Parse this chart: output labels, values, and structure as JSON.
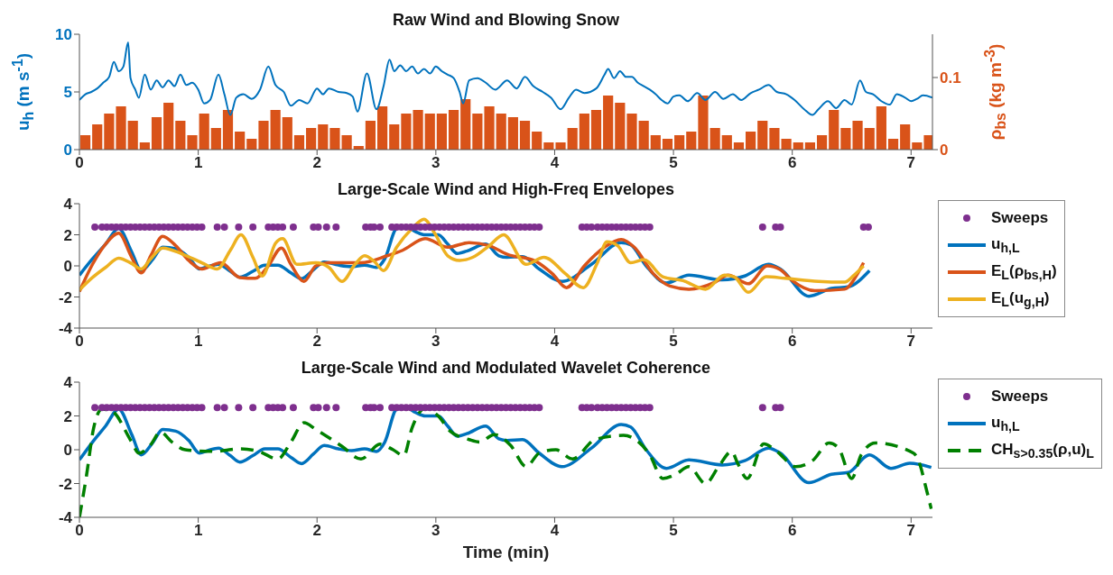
{
  "chart_data": [
    {
      "type": "line",
      "title": "Raw Wind and Blowing Snow",
      "ylabel": "u$_{h}$ (m s$^{-1}$)",
      "y2label": "ρ$_{bs}$ (kg m$^{-3}$)",
      "xlim": [
        0,
        7.18
      ],
      "xticks": [
        0,
        1,
        2,
        3,
        4,
        5,
        6,
        7
      ],
      "ylim": [
        0,
        10
      ],
      "yticks": [
        0,
        5,
        10
      ],
      "y2lim": [
        0,
        0.16
      ],
      "y2ticks": [
        0,
        0.1
      ],
      "series": [
        {
          "type": "bar",
          "axis": "y2",
          "color": "#d95319",
          "x": [
            0.05,
            0.15,
            0.25,
            0.35,
            0.45,
            0.55,
            0.65,
            0.75,
            0.85,
            0.95,
            1.05,
            1.15,
            1.25,
            1.35,
            1.45,
            1.55,
            1.65,
            1.75,
            1.85,
            1.95,
            2.05,
            2.15,
            2.25,
            2.35,
            2.45,
            2.55,
            2.65,
            2.75,
            2.85,
            2.95,
            3.05,
            3.15,
            3.25,
            3.35,
            3.45,
            3.55,
            3.65,
            3.75,
            3.85,
            3.95,
            4.05,
            4.15,
            4.25,
            4.35,
            4.45,
            4.55,
            4.65,
            4.75,
            4.85,
            4.95,
            5.05,
            5.15,
            5.25,
            5.35,
            5.45,
            5.55,
            5.65,
            5.75,
            5.85,
            5.95,
            6.05,
            6.15,
            6.25,
            6.35,
            6.45,
            6.55,
            6.65,
            6.75,
            6.85,
            6.95,
            7.05,
            7.15
          ],
          "values": [
            0.02,
            0.035,
            0.05,
            0.06,
            0.04,
            0.01,
            0.045,
            0.065,
            0.04,
            0.02,
            0.05,
            0.03,
            0.055,
            0.025,
            0.015,
            0.04,
            0.055,
            0.045,
            0.02,
            0.03,
            0.035,
            0.03,
            0.02,
            0.005,
            0.04,
            0.06,
            0.035,
            0.05,
            0.055,
            0.05,
            0.05,
            0.055,
            0.07,
            0.05,
            0.06,
            0.05,
            0.045,
            0.04,
            0.025,
            0.01,
            0.01,
            0.03,
            0.05,
            0.055,
            0.075,
            0.065,
            0.05,
            0.04,
            0.02,
            0.015,
            0.02,
            0.025,
            0.075,
            0.03,
            0.02,
            0.01,
            0.025,
            0.04,
            0.03,
            0.015,
            0.01,
            0.01,
            0.02,
            0.055,
            0.03,
            0.04,
            0.03,
            0.06,
            0.015,
            0.035,
            0.01,
            0.02
          ]
        },
        {
          "axis": "y",
          "color": "#0072bd",
          "x": [
            0,
            0.05,
            0.1,
            0.15,
            0.2,
            0.25,
            0.29,
            0.33,
            0.37,
            0.41,
            0.43,
            0.47,
            0.5,
            0.55,
            0.6,
            0.65,
            0.7,
            0.75,
            0.8,
            0.85,
            0.9,
            0.95,
            1.0,
            1.05,
            1.1,
            1.17,
            1.22,
            1.27,
            1.32,
            1.38,
            1.45,
            1.52,
            1.59,
            1.65,
            1.72,
            1.78,
            1.85,
            1.92,
            2.0,
            2.05,
            2.1,
            2.18,
            2.25,
            2.3,
            2.34,
            2.42,
            2.5,
            2.56,
            2.61,
            2.65,
            2.7,
            2.75,
            2.8,
            2.85,
            2.9,
            2.95,
            3.0,
            3.05,
            3.1,
            3.15,
            3.2,
            3.23,
            3.28,
            3.35,
            3.42,
            3.5,
            3.6,
            3.68,
            3.75,
            3.82,
            3.9,
            3.97,
            4.05,
            4.12,
            4.18,
            4.25,
            4.35,
            4.42,
            4.45,
            4.5,
            4.55,
            4.6,
            4.65,
            4.7,
            4.75,
            4.8,
            4.85,
            4.9,
            4.95,
            5.0,
            5.05,
            5.12,
            5.2,
            5.27,
            5.35,
            5.42,
            5.5,
            5.57,
            5.65,
            5.72,
            5.8,
            5.87,
            5.95,
            6.02,
            6.1,
            6.17,
            6.22,
            6.3,
            6.37,
            6.44,
            6.5,
            6.57,
            6.62,
            6.68,
            6.75,
            6.82,
            6.88,
            6.95,
            7.0,
            7.05,
            7.1,
            7.18
          ],
          "values": [
            4.3,
            4.8,
            5.0,
            5.3,
            5.8,
            6.3,
            7.6,
            6.8,
            7.2,
            9.3,
            6.2,
            5.2,
            4.5,
            6.5,
            5.2,
            6.0,
            5.4,
            6.0,
            5.5,
            6.5,
            5.6,
            5.8,
            5.2,
            4.0,
            4.3,
            6.5,
            4.8,
            3.0,
            4.5,
            4.8,
            4.4,
            5.2,
            7.2,
            5.6,
            5.0,
            3.8,
            4.3,
            4.0,
            5.3,
            4.8,
            5.3,
            5.0,
            4.9,
            4.6,
            3.3,
            6.6,
            3.5,
            5.5,
            7.8,
            6.8,
            7.3,
            6.8,
            7.2,
            6.6,
            7.0,
            6.6,
            7.2,
            6.8,
            6.5,
            6.2,
            5.0,
            4.0,
            6.0,
            6.2,
            5.8,
            5.2,
            6.0,
            5.3,
            6.3,
            5.5,
            5.0,
            4.5,
            3.5,
            4.5,
            5.2,
            4.9,
            5.3,
            6.5,
            7.0,
            6.2,
            6.8,
            6.3,
            6.3,
            5.8,
            5.5,
            5.2,
            4.8,
            4.3,
            4.0,
            4.6,
            4.7,
            4.2,
            4.9,
            4.3,
            5.0,
            4.4,
            4.8,
            4.3,
            4.9,
            5.2,
            5.6,
            5.0,
            4.8,
            4.3,
            3.5,
            3.0,
            3.5,
            4.2,
            3.6,
            4.3,
            3.9,
            6.0,
            5.0,
            4.8,
            4.2,
            3.9,
            4.8,
            4.5,
            4.2,
            4.4,
            4.7,
            4.5
          ]
        }
      ]
    },
    {
      "type": "line",
      "title": "Large-Scale Wind and High-Freq Envelopes",
      "xlim": [
        0,
        7.18
      ],
      "xticks": [
        0,
        1,
        2,
        3,
        4,
        5,
        6,
        7
      ],
      "ylim": [
        -4,
        4
      ],
      "yticks": [
        -4,
        -2,
        0,
        2,
        4
      ],
      "legend": "right",
      "series": [
        {
          "type": "scatter",
          "name": "Sweeps",
          "color": "#7e2f8e",
          "marker": "circle",
          "x": [
            0.13,
            0.19,
            0.23,
            0.27,
            0.31,
            0.35,
            0.39,
            0.43,
            0.47,
            0.51,
            0.55,
            0.59,
            0.63,
            0.67,
            0.71,
            0.75,
            0.79,
            0.83,
            0.87,
            0.91,
            0.95,
            0.99,
            1.03,
            1.16,
            1.22,
            1.34,
            1.46,
            1.59,
            1.63,
            1.67,
            1.71,
            1.8,
            1.97,
            2.01,
            2.08,
            2.16,
            2.41,
            2.45,
            2.48,
            2.53,
            2.63,
            2.67,
            2.71,
            2.75,
            2.79,
            2.83,
            2.87,
            2.91,
            2.95,
            2.99,
            3.03,
            3.07,
            3.11,
            3.15,
            3.19,
            3.23,
            3.27,
            3.31,
            3.35,
            3.39,
            3.43,
            3.47,
            3.51,
            3.55,
            3.59,
            3.63,
            3.67,
            3.71,
            3.75,
            3.79,
            3.83,
            3.87,
            4.23,
            4.27,
            4.31,
            4.36,
            4.4,
            4.44,
            4.48,
            4.52,
            4.56,
            4.6,
            4.64,
            4.68,
            4.72,
            4.76,
            4.8,
            5.75,
            5.86,
            5.9,
            6.6,
            6.64
          ],
          "values": [
            2.5,
            2.5,
            2.5,
            2.5,
            2.5,
            2.5,
            2.5,
            2.5,
            2.5,
            2.5,
            2.5,
            2.5,
            2.5,
            2.5,
            2.5,
            2.5,
            2.5,
            2.5,
            2.5,
            2.5,
            2.5,
            2.5,
            2.5,
            2.5,
            2.5,
            2.5,
            2.5,
            2.5,
            2.5,
            2.5,
            2.5,
            2.5,
            2.5,
            2.5,
            2.5,
            2.5,
            2.5,
            2.5,
            2.5,
            2.5,
            2.5,
            2.5,
            2.5,
            2.5,
            2.5,
            2.5,
            2.5,
            2.5,
            2.5,
            2.5,
            2.5,
            2.5,
            2.5,
            2.5,
            2.5,
            2.5,
            2.5,
            2.5,
            2.5,
            2.5,
            2.5,
            2.5,
            2.5,
            2.5,
            2.5,
            2.5,
            2.5,
            2.5,
            2.5,
            2.5,
            2.5,
            2.5,
            2.5,
            2.5,
            2.5,
            2.5,
            2.5,
            2.5,
            2.5,
            2.5,
            2.5,
            2.5,
            2.5,
            2.5,
            2.5,
            2.5,
            2.5,
            2.5,
            2.5,
            2.5,
            2.5,
            2.5
          ]
        },
        {
          "name": "u$_{h,L}$",
          "color": "#0072bd",
          "line_style": "solid",
          "x": [
            0,
            0.11,
            0.22,
            0.33,
            0.44,
            0.52,
            0.62,
            0.7,
            0.81,
            0.92,
            1.01,
            1.08,
            1.17,
            1.27,
            1.35,
            1.46,
            1.56,
            1.67,
            1.78,
            1.87,
            1.97,
            2.06,
            2.18,
            2.29,
            2.4,
            2.5,
            2.57,
            2.67,
            2.75,
            2.83,
            2.91,
            3.02,
            3.1,
            3.18,
            3.26,
            3.42,
            3.53,
            3.6,
            3.73,
            3.87,
            4.06,
            4.31,
            4.56,
            4.64,
            4.77,
            4.94,
            5.13,
            5.41,
            5.6,
            5.8,
            5.9,
            6.14,
            6.33,
            6.47,
            6.65
          ],
          "values": [
            -0.6,
            0.45,
            1.4,
            2.4,
            0.9,
            -0.3,
            0.45,
            1.2,
            1.1,
            0.55,
            -0.2,
            -0.05,
            0.1,
            -0.35,
            -0.73,
            -0.35,
            0.05,
            0.05,
            -0.45,
            -0.82,
            -0.25,
            0.25,
            0.05,
            -0.05,
            0.05,
            -0.1,
            0.45,
            2.4,
            2.5,
            2.2,
            2.0,
            2.0,
            1.4,
            0.8,
            0.95,
            1.4,
            0.65,
            0.55,
            0.6,
            -0.2,
            -1.0,
            0.1,
            1.5,
            1.35,
            0,
            -1.1,
            -0.6,
            -0.9,
            -0.65,
            0.1,
            -0.2,
            -1.95,
            -1.45,
            -1.35,
            -0.3
          ]
        },
        {
          "name": "E$_{L}$(ρ$_{bs,H}$)",
          "color": "#d95319",
          "line_style": "solid",
          "x": [
            0,
            0.11,
            0.22,
            0.33,
            0.44,
            0.52,
            0.6,
            0.7,
            0.81,
            0.92,
            1.03,
            1.19,
            1.35,
            1.48,
            1.59,
            1.7,
            1.78,
            1.89,
            1.99,
            2.1,
            2.37,
            2.59,
            2.72,
            2.91,
            3.1,
            3.28,
            3.45,
            3.6,
            3.84,
            3.98,
            4.1,
            4.25,
            4.42,
            4.56,
            4.67,
            4.83,
            4.97,
            5.13,
            5.35,
            5.46,
            5.63,
            5.79,
            5.9,
            6.0,
            6.19,
            6.44,
            6.55,
            6.6
          ],
          "values": [
            -1.65,
            0.1,
            1.4,
            2.1,
            0.55,
            -0.45,
            0.65,
            1.9,
            1.3,
            0.35,
            -0.2,
            0.2,
            -0.75,
            -0.8,
            0,
            1.15,
            0.1,
            -1.0,
            0,
            0.2,
            0.2,
            0.65,
            1.0,
            1.75,
            1.2,
            1.5,
            1.3,
            0.75,
            0.3,
            -0.5,
            -1.4,
            0,
            1.2,
            1.7,
            1.2,
            -0.5,
            -1.3,
            -1.5,
            -1.05,
            -0.6,
            -1.15,
            0,
            -0.25,
            -0.95,
            -1.6,
            -1.5,
            -0.5,
            0.2
          ]
        },
        {
          "name": "E$_{L}$(u$_{g,H}$)",
          "color": "#edb120",
          "line_style": "solid",
          "x": [
            0,
            0.11,
            0.22,
            0.33,
            0.44,
            0.52,
            0.6,
            0.7,
            0.87,
            1.03,
            1.16,
            1.27,
            1.36,
            1.46,
            1.54,
            1.65,
            1.71,
            1.83,
            1.99,
            2.1,
            2.21,
            2.32,
            2.4,
            2.48,
            2.56,
            2.67,
            2.8,
            2.9,
            2.99,
            3.1,
            3.2,
            3.31,
            3.45,
            3.57,
            3.76,
            3.91,
            4.09,
            4.24,
            4.36,
            4.44,
            4.53,
            4.64,
            4.75,
            4.91,
            5.08,
            5.27,
            5.43,
            5.51,
            5.63,
            5.78,
            5.94,
            6.22,
            6.44,
            6.52,
            6.6
          ],
          "values": [
            -1.55,
            -0.75,
            -0.1,
            0.5,
            0.15,
            -0.2,
            0.45,
            1.15,
            0.75,
            0.2,
            -0.2,
            1.0,
            2.0,
            0.55,
            -0.65,
            1.45,
            1.75,
            0.1,
            0.2,
            -0.1,
            -1.0,
            0.1,
            0.65,
            0.3,
            -0.3,
            1.2,
            2.4,
            3.0,
            2.1,
            0.65,
            0.35,
            0.55,
            1.3,
            2.0,
            0.1,
            0.55,
            -0.5,
            -1.4,
            0.2,
            1.55,
            1.3,
            0.2,
            0.4,
            -0.7,
            -0.95,
            -1.5,
            -0.6,
            -0.7,
            -1.7,
            -0.7,
            -0.8,
            -1.0,
            -1.05,
            -0.6,
            0
          ]
        }
      ]
    },
    {
      "type": "line",
      "title": "Large-Scale Wind and Modulated Wavelet Coherence",
      "xlabel": "Time (min)",
      "xlim": [
        0,
        7.18
      ],
      "xticks": [
        0,
        1,
        2,
        3,
        4,
        5,
        6,
        7
      ],
      "ylim": [
        -4,
        4
      ],
      "yticks": [
        -4,
        -2,
        0,
        2,
        4
      ],
      "legend": "right",
      "series": [
        {
          "type": "scatter",
          "name": "Sweeps",
          "color": "#7e2f8e",
          "marker": "circle",
          "x": [
            0.13,
            0.19,
            0.23,
            0.27,
            0.31,
            0.35,
            0.39,
            0.43,
            0.47,
            0.51,
            0.55,
            0.59,
            0.63,
            0.67,
            0.71,
            0.75,
            0.79,
            0.83,
            0.87,
            0.91,
            0.95,
            0.99,
            1.03,
            1.16,
            1.22,
            1.34,
            1.46,
            1.59,
            1.63,
            1.67,
            1.71,
            1.8,
            1.97,
            2.01,
            2.08,
            2.16,
            2.41,
            2.45,
            2.48,
            2.53,
            2.63,
            2.67,
            2.71,
            2.75,
            2.79,
            2.83,
            2.87,
            2.91,
            2.95,
            2.99,
            3.03,
            3.07,
            3.11,
            3.15,
            3.19,
            3.23,
            3.27,
            3.31,
            3.35,
            3.39,
            3.43,
            3.47,
            3.51,
            3.55,
            3.59,
            3.63,
            3.67,
            3.71,
            3.75,
            3.79,
            3.83,
            3.87,
            4.23,
            4.27,
            4.31,
            4.36,
            4.4,
            4.44,
            4.48,
            4.52,
            4.56,
            4.6,
            4.64,
            4.68,
            4.72,
            4.76,
            4.8,
            5.75,
            5.86,
            5.9
          ],
          "values": [
            2.5,
            2.5,
            2.5,
            2.5,
            2.5,
            2.5,
            2.5,
            2.5,
            2.5,
            2.5,
            2.5,
            2.5,
            2.5,
            2.5,
            2.5,
            2.5,
            2.5,
            2.5,
            2.5,
            2.5,
            2.5,
            2.5,
            2.5,
            2.5,
            2.5,
            2.5,
            2.5,
            2.5,
            2.5,
            2.5,
            2.5,
            2.5,
            2.5,
            2.5,
            2.5,
            2.5,
            2.5,
            2.5,
            2.5,
            2.5,
            2.5,
            2.5,
            2.5,
            2.5,
            2.5,
            2.5,
            2.5,
            2.5,
            2.5,
            2.5,
            2.5,
            2.5,
            2.5,
            2.5,
            2.5,
            2.5,
            2.5,
            2.5,
            2.5,
            2.5,
            2.5,
            2.5,
            2.5,
            2.5,
            2.5,
            2.5,
            2.5,
            2.5,
            2.5,
            2.5,
            2.5,
            2.5,
            2.5,
            2.5,
            2.5,
            2.5,
            2.5,
            2.5,
            2.5,
            2.5,
            2.5,
            2.5,
            2.5,
            2.5,
            2.5,
            2.5,
            2.5,
            2.5,
            2.5,
            2.5
          ]
        },
        {
          "name": "u$_{h,L}$",
          "color": "#0072bd",
          "line_style": "solid",
          "x": [
            0,
            0.11,
            0.22,
            0.33,
            0.44,
            0.52,
            0.62,
            0.7,
            0.81,
            0.92,
            1.01,
            1.08,
            1.17,
            1.27,
            1.35,
            1.46,
            1.56,
            1.67,
            1.78,
            1.87,
            1.97,
            2.06,
            2.18,
            2.29,
            2.4,
            2.5,
            2.57,
            2.67,
            2.75,
            2.83,
            2.91,
            3.02,
            3.1,
            3.18,
            3.26,
            3.42,
            3.53,
            3.6,
            3.73,
            3.87,
            4.06,
            4.31,
            4.56,
            4.64,
            4.77,
            4.94,
            5.13,
            5.41,
            5.6,
            5.8,
            5.9,
            6.14,
            6.33,
            6.47,
            6.65,
            6.83,
            6.99,
            7.17
          ],
          "values": [
            -0.6,
            0.45,
            1.4,
            2.4,
            0.9,
            -0.3,
            0.45,
            1.2,
            1.1,
            0.55,
            -0.2,
            -0.05,
            0.1,
            -0.35,
            -0.73,
            -0.35,
            0.05,
            0.05,
            -0.45,
            -0.82,
            -0.25,
            0.25,
            0.05,
            -0.05,
            0.05,
            -0.1,
            0.45,
            2.4,
            2.5,
            2.2,
            2.0,
            2.0,
            1.4,
            0.8,
            0.95,
            1.4,
            0.65,
            0.55,
            0.6,
            -0.2,
            -1.0,
            0.1,
            1.5,
            1.35,
            0,
            -1.1,
            -0.6,
            -0.9,
            -0.65,
            0.1,
            -0.2,
            -1.95,
            -1.45,
            -1.35,
            -0.3,
            -1.1,
            -0.8,
            -1.05
          ]
        },
        {
          "name": "CH$_{s>0.35}$(ρ,u)$_{L}$",
          "color": "#008000",
          "line_style": "dashed",
          "x": [
            0,
            0.06,
            0.12,
            0.19,
            0.27,
            0.44,
            0.5,
            0.6,
            0.68,
            0.78,
            0.89,
            1.13,
            1.35,
            1.51,
            1.67,
            1.78,
            1.89,
            1.99,
            2.21,
            2.37,
            2.53,
            2.64,
            2.73,
            2.8,
            2.91,
            3.02,
            3.12,
            3.28,
            3.37,
            3.49,
            3.63,
            3.76,
            3.87,
            4.01,
            4.15,
            4.34,
            4.58,
            4.69,
            4.8,
            4.91,
            5.02,
            5.13,
            5.27,
            5.38,
            5.49,
            5.54,
            5.62,
            5.76,
            5.87,
            6.03,
            6.17,
            6.31,
            6.39,
            6.5,
            6.58,
            6.7,
            7.02,
            7.08,
            7.12,
            7.17
          ],
          "values": [
            -4,
            -1.5,
            1.3,
            2.4,
            2.3,
            0.45,
            -0.2,
            0.3,
            1.05,
            0.45,
            0,
            -0.1,
            0.05,
            -0.1,
            -0.55,
            0.45,
            1.6,
            1.2,
            0.2,
            -0.55,
            0.33,
            0,
            -0.35,
            1.3,
            2.45,
            2.0,
            1.1,
            0.6,
            0.45,
            0.9,
            0.25,
            -1.0,
            -0.2,
            0,
            -0.55,
            0.6,
            0.85,
            0.55,
            -0.3,
            -1.7,
            -1.45,
            -1.0,
            -2.0,
            -1.0,
            -0.1,
            -0.8,
            -1.7,
            0.35,
            -0.1,
            -1.0,
            -0.65,
            0.4,
            0.1,
            -1.7,
            -0.3,
            0.4,
            -0.2,
            -1.0,
            -2.1,
            -3.5
          ]
        }
      ]
    }
  ]
}
